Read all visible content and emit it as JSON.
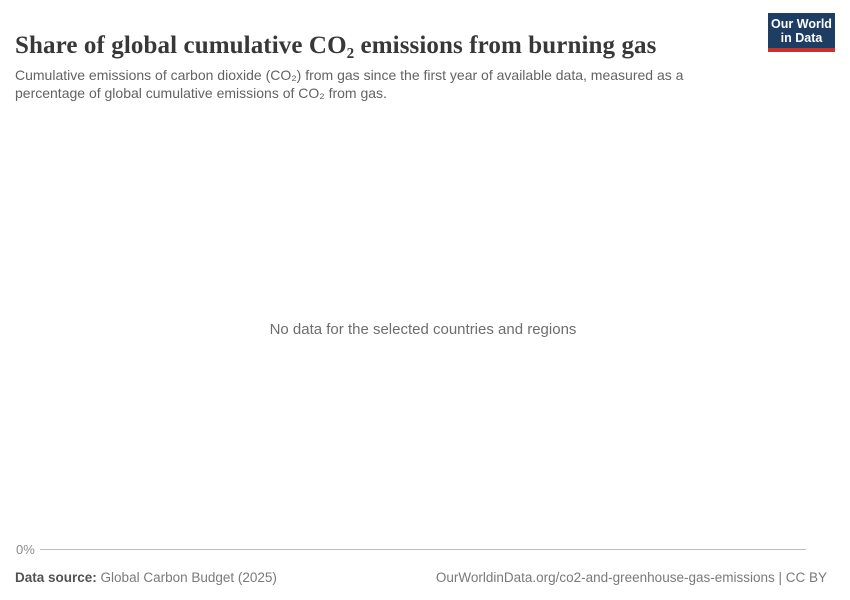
{
  "header": {
    "title": "Share of global cumulative CO₂ emissions from burning gas",
    "subtitle": "Cumulative emissions of carbon dioxide (CO₂) from gas since the first year of available data, measured as a percentage of global cumulative emissions of CO₂ from gas.",
    "logo": {
      "line1": "Our World",
      "line2": "in Data"
    }
  },
  "chart": {
    "no_data_message": "No data for the selected countries and regions",
    "y_axis_tick": "0%"
  },
  "footer": {
    "source_label": "Data source:",
    "source_value": "Global Carbon Budget (2025)",
    "attribution": "OurWorldinData.org/co2-and-greenhouse-gas-emissions | CC BY"
  },
  "colors": {
    "logo_background": "#1d3d63",
    "logo_underline": "#c5312b",
    "title_text": "#383838",
    "subtitle_text": "#636363",
    "no_data_text": "#6e6e6e",
    "axis_line": "#bdbdbd"
  },
  "chart_data": {
    "type": "line",
    "title": "Share of global cumulative CO₂ emissions from burning gas",
    "subtitle": "Cumulative emissions of carbon dioxide (CO₂) from gas since the first year of available data, measured as a percentage of global cumulative emissions of CO₂ from gas.",
    "xlabel": "",
    "ylabel": "",
    "x": [],
    "series": [],
    "y_ticks": [
      "0%"
    ],
    "legend_position": "none",
    "grid": true,
    "empty_state": true,
    "empty_state_message": "No data for the selected countries and regions"
  }
}
